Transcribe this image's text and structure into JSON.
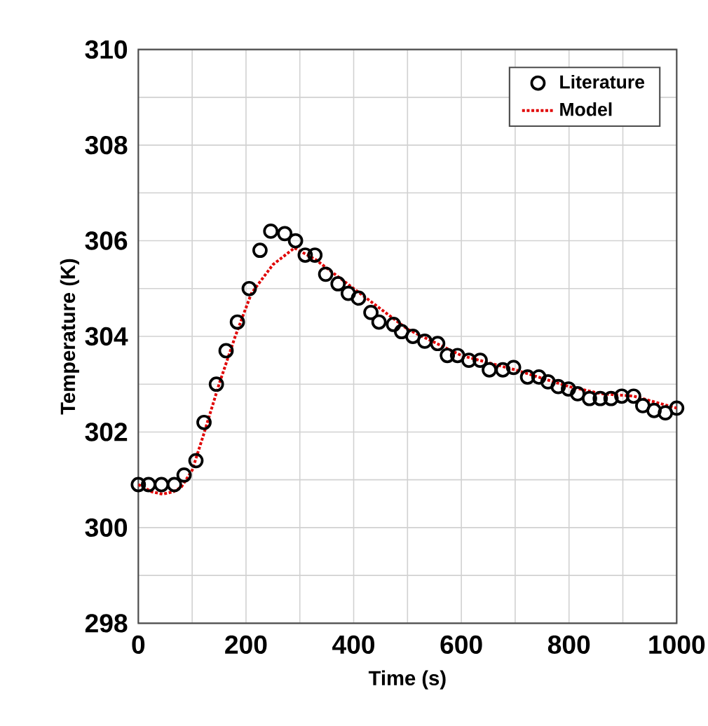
{
  "chart_data": {
    "type": "scatter",
    "xlabel": "Time (s)",
    "ylabel": "Temperature (K)",
    "xlim": [
      0,
      1000
    ],
    "ylim": [
      298,
      310
    ],
    "xticks": [
      0,
      200,
      400,
      600,
      800,
      1000
    ],
    "yticks": [
      298,
      300,
      302,
      304,
      306,
      308,
      310
    ],
    "grid": true,
    "legend": "top right",
    "series": [
      {
        "name": "Literature",
        "marker": "circle",
        "color": "#000000",
        "x": [
          0,
          19,
          43,
          67,
          85,
          107,
          122,
          145,
          163,
          184,
          206,
          226,
          246,
          272,
          292,
          310,
          328,
          348,
          371,
          390,
          409,
          432,
          447,
          474,
          489,
          510,
          532,
          556,
          574,
          593,
          614,
          635,
          652,
          677,
          697,
          723,
          744,
          761,
          780,
          799,
          816,
          838,
          858,
          878,
          898,
          920,
          937,
          958,
          979,
          1000
        ],
        "values": [
          300.9,
          300.9,
          300.9,
          300.9,
          301.1,
          301.4,
          302.2,
          303.0,
          303.7,
          304.3,
          305.0,
          305.8,
          306.2,
          306.15,
          306.0,
          305.7,
          305.7,
          305.3,
          305.1,
          304.9,
          304.8,
          304.5,
          304.3,
          304.25,
          304.1,
          304.0,
          303.9,
          303.85,
          303.6,
          303.6,
          303.5,
          303.5,
          303.3,
          303.3,
          303.35,
          303.15,
          303.15,
          303.05,
          302.95,
          302.9,
          302.8,
          302.7,
          302.7,
          302.7,
          302.75,
          302.75,
          302.55,
          302.45,
          302.4,
          302.5
        ]
      },
      {
        "name": "Model",
        "type": "line",
        "line_style": "dotted",
        "color": "#e00000",
        "x": [
          0,
          25,
          45,
          65,
          80,
          100,
          120,
          150,
          180,
          210,
          250,
          290,
          330,
          400,
          500,
          600,
          700,
          800,
          860,
          920,
          1000
        ],
        "values": [
          300.9,
          300.75,
          300.7,
          300.75,
          300.85,
          301.2,
          301.9,
          303.0,
          304.0,
          304.9,
          305.5,
          305.85,
          305.6,
          305.0,
          304.15,
          303.6,
          303.3,
          302.95,
          302.8,
          302.75,
          302.5
        ]
      }
    ]
  }
}
